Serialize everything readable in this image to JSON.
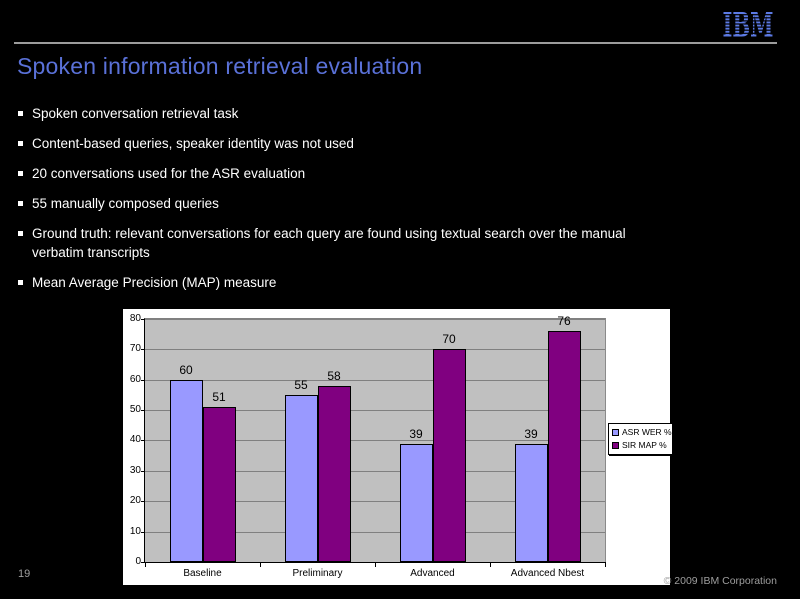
{
  "slide": {
    "title": "Spoken information retrieval evaluation",
    "logo_text": "IBM",
    "page_number": "19",
    "copyright": "© 2009 IBM Corporation"
  },
  "bullets": [
    {
      "lines": [
        "Spoken conversation retrieval task"
      ]
    },
    {
      "lines": [
        "Content-based queries, speaker identity was not used"
      ]
    },
    {
      "lines": [
        "20 conversations used for the ASR evaluation"
      ]
    },
    {
      "lines": [
        "55 manually composed queries"
      ]
    },
    {
      "lines": [
        "Ground truth: relevant conversations for each query are found using textual search over the manual",
        "verbatim transcripts"
      ]
    },
    {
      "lines": [
        "Mean Average Precision (MAP) measure"
      ]
    }
  ],
  "chart_data": {
    "type": "bar",
    "categories": [
      "Baseline",
      "Preliminary",
      "Advanced",
      "Advanced Nbest"
    ],
    "series": [
      {
        "name": "ASR WER %",
        "color": "#9999ff",
        "values": [
          60,
          55,
          39,
          39
        ]
      },
      {
        "name": "SIR MAP %",
        "color": "#800080",
        "values": [
          51,
          58,
          70,
          76
        ]
      }
    ],
    "title": "",
    "xlabel": "",
    "ylabel": "",
    "ylim": [
      0,
      80
    ],
    "ytick_step": 10,
    "grid": true,
    "legend_position": "right",
    "plot_bg": "#c0c0c0",
    "gridline_color": "#808080",
    "chart_bg": "#ffffff"
  },
  "colors": {
    "background": "#000000",
    "title": "#5a71d8",
    "logo_blue": "#5c7ae4",
    "rule_gray": "#9c9c9c",
    "bullet_text": "#ffffff",
    "footer_gray": "#9e9e9e"
  }
}
